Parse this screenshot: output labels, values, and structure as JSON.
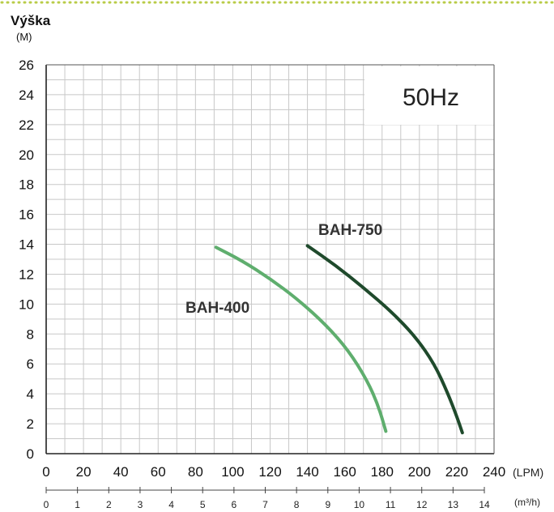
{
  "chart_data": {
    "type": "line",
    "ylabel": "Výška",
    "yunit": "(M)",
    "xunit": "(LPM)",
    "x2unit": "(m³/h)",
    "annotation": "50Hz",
    "xlim": [
      0,
      240
    ],
    "ylim": [
      0,
      26
    ],
    "xticks": [
      0,
      20,
      40,
      60,
      80,
      100,
      120,
      140,
      160,
      180,
      200,
      220,
      240
    ],
    "yticks": [
      0,
      2,
      4,
      6,
      8,
      10,
      12,
      14,
      16,
      18,
      20,
      22,
      24,
      26
    ],
    "x2ticks": [
      "0",
      "1",
      "2",
      "3",
      "4",
      "5",
      "6",
      "7",
      "8",
      "9",
      "10",
      "11",
      "12",
      "13",
      "14"
    ],
    "grid": true,
    "series": [
      {
        "name": "BAH-400",
        "color": "#5fae6e",
        "points": [
          [
            91,
            13.8
          ],
          [
            105,
            12.9
          ],
          [
            120,
            11.7
          ],
          [
            135,
            10.3
          ],
          [
            150,
            8.6
          ],
          [
            162,
            6.9
          ],
          [
            172,
            4.9
          ],
          [
            178,
            3.2
          ],
          [
            182,
            1.5
          ]
        ]
      },
      {
        "name": "BAH-750",
        "color": "#1f4a2c",
        "points": [
          [
            140,
            13.9
          ],
          [
            155,
            12.6
          ],
          [
            170,
            11.1
          ],
          [
            185,
            9.5
          ],
          [
            198,
            7.8
          ],
          [
            208,
            6.0
          ],
          [
            215,
            4.1
          ],
          [
            220,
            2.5
          ],
          [
            223,
            1.4
          ]
        ]
      }
    ]
  }
}
